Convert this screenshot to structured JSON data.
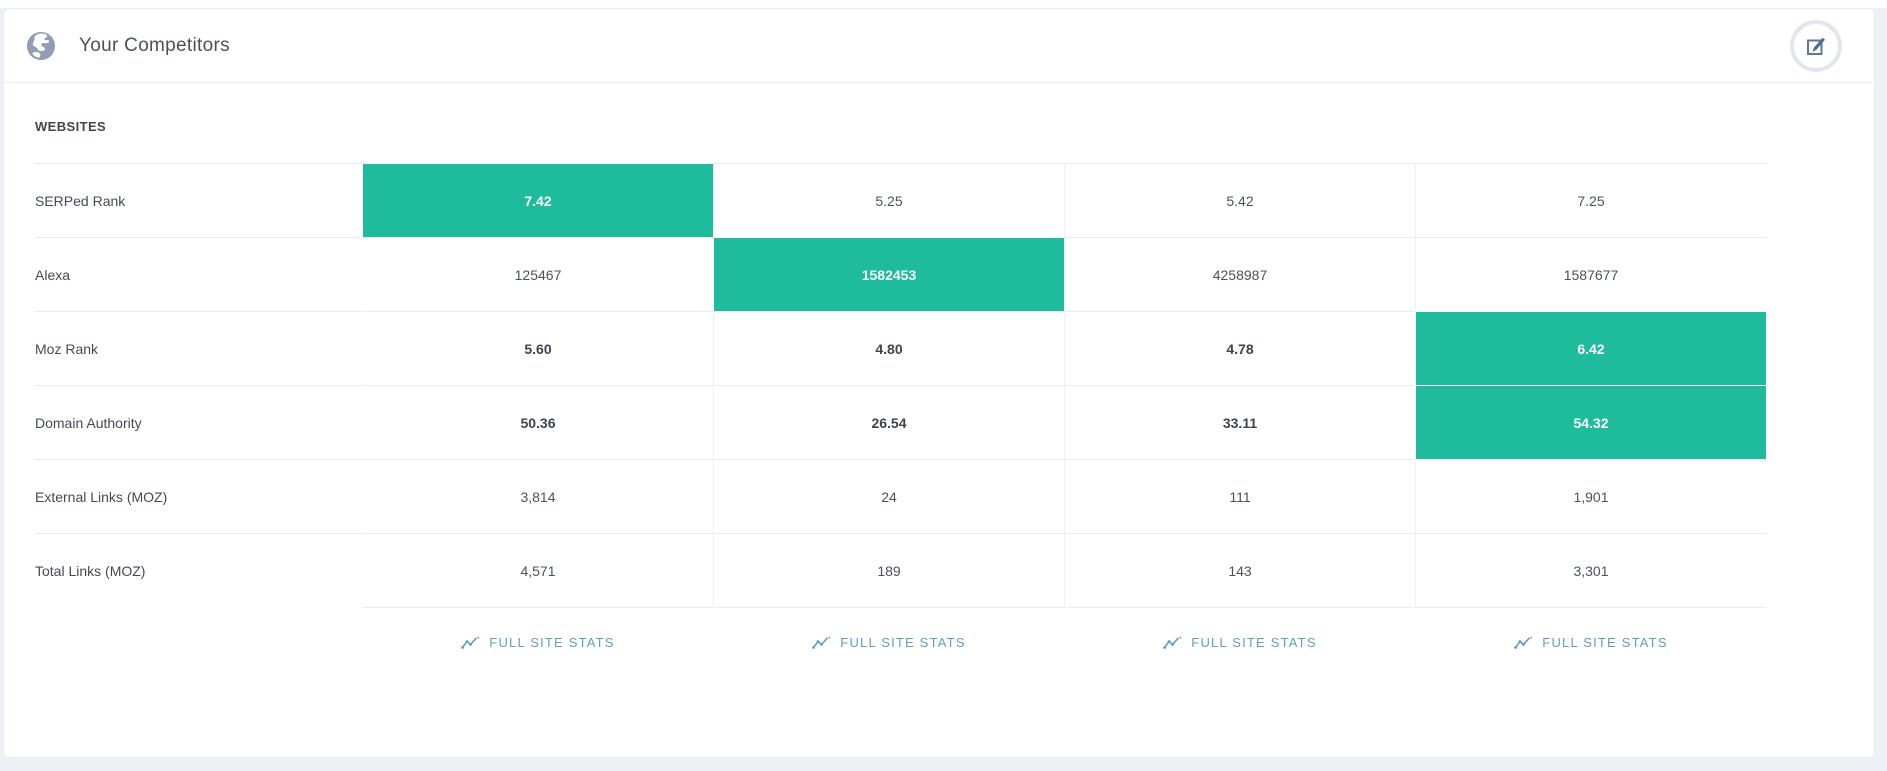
{
  "header": {
    "title": "Your Competitors",
    "globe_icon": "globe-icon",
    "edit_icon": "edit-square-icon"
  },
  "table": {
    "section_label": "WEBSITES",
    "columns_count": 4,
    "highlight_color": "#1ebc9c",
    "rows": [
      {
        "label": "SERPed Rank",
        "values": [
          "7.42",
          "5.25",
          "5.42",
          "7.25"
        ],
        "best_index": 0,
        "bold": false
      },
      {
        "label": "Alexa",
        "values": [
          "125467",
          "1582453",
          "4258987",
          "1587677"
        ],
        "best_index": 1,
        "bold": false
      },
      {
        "label": "Moz Rank",
        "values": [
          "5.60",
          "4.80",
          "4.78",
          "6.42"
        ],
        "best_index": 3,
        "bold": true
      },
      {
        "label": "Domain Authority",
        "values": [
          "50.36",
          "26.54",
          "33.11",
          "54.32"
        ],
        "best_index": 3,
        "bold": true
      },
      {
        "label": "External Links (MOZ)",
        "values": [
          "3,814",
          "24",
          "111",
          "1,901"
        ],
        "best_index": null,
        "bold": false
      },
      {
        "label": "Total Links (MOZ)",
        "values": [
          "4,571",
          "189",
          "143",
          "3,301"
        ],
        "best_index": null,
        "bold": false
      }
    ],
    "footer": {
      "link_label": "FULL SITE STATS",
      "link_color": "#5f9fbc",
      "link_icon": "trend-chart-icon"
    }
  }
}
